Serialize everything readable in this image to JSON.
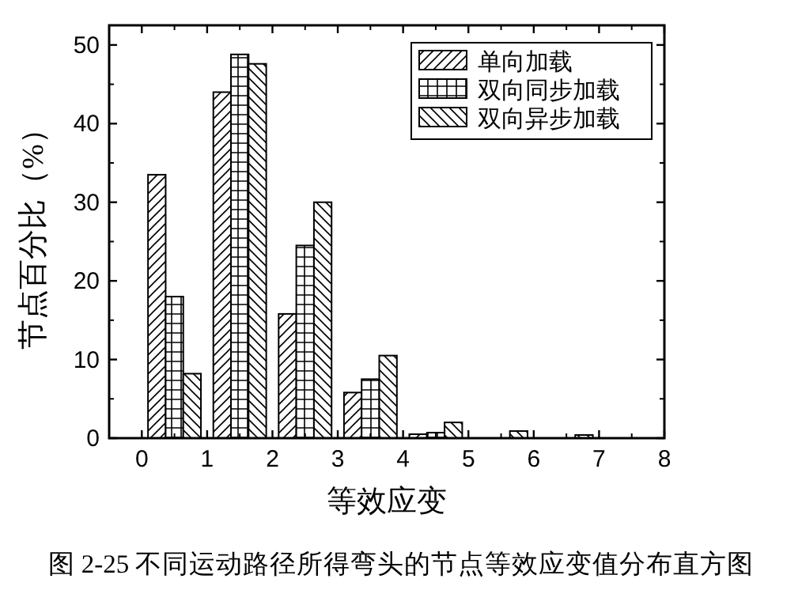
{
  "chart_data": {
    "type": "bar",
    "xlabel": "等效应变",
    "ylabel": "节点百分比（%）",
    "xlim": [
      -0.5,
      8
    ],
    "ylim": [
      0,
      52.5
    ],
    "xticks": [
      0,
      1,
      2,
      3,
      4,
      5,
      6,
      7,
      8
    ],
    "yticks": [
      0,
      10,
      20,
      30,
      40,
      50
    ],
    "legend": "top right",
    "series": [
      {
        "name": "单向加载",
        "color": "#000000",
        "x": [
          0.23,
          1.23,
          2.23,
          3.23,
          4.23
        ],
        "values": [
          33.5,
          44,
          15.8,
          5.8,
          0.5
        ]
      },
      {
        "name": "双向同步加载",
        "color": "#000000",
        "x": [
          0.5,
          1.5,
          2.5,
          3.5,
          4.5
        ],
        "values": [
          18,
          48.8,
          24.5,
          7.5,
          0.7
        ]
      },
      {
        "name": "双向异步加载",
        "color": "#000000",
        "x": [
          0.77,
          1.77,
          2.77,
          3.77,
          4.77,
          5.77,
          6.77
        ],
        "values": [
          8.2,
          47.6,
          30,
          10.5,
          2,
          0.9,
          0.4
        ]
      }
    ],
    "annotations": [
      "图 2-25  不同运动路径所得弯头的节点等效应变值分布直方图"
    ]
  }
}
